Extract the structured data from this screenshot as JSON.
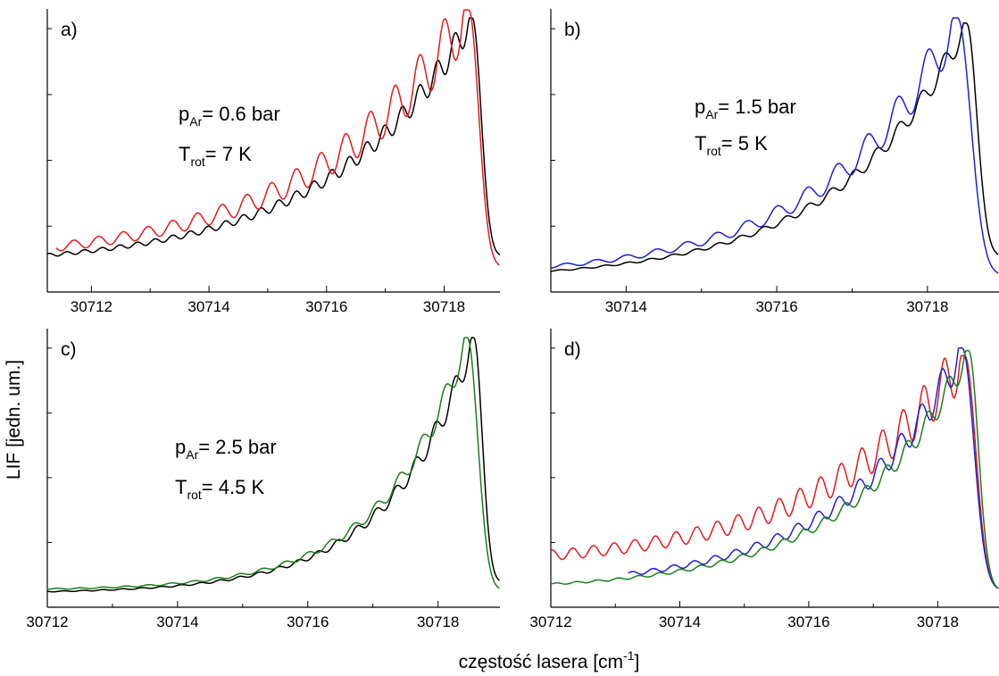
{
  "figure": {
    "ylabel": "LIF [jedn. um.]",
    "xlabel_main": "częstość lasera [cm",
    "xlabel_sup": "-1",
    "xlabel_end": "]"
  },
  "colors": {
    "red": "#e31a1c",
    "blue": "#1f1fd6",
    "green": "#1a7f1a",
    "black": "#000000"
  },
  "chart_data": [
    {
      "type": "line",
      "panel_label": "a)",
      "xlim": [
        30711.25,
        30718.95
      ],
      "ylim": [
        0,
        1
      ],
      "xticks": [
        30712,
        30714,
        30716,
        30718
      ],
      "xtick_labels": [
        "30712",
        "30714",
        "30716",
        "30718"
      ],
      "annotation": {
        "l1_main": "p",
        "l1_sub": "Ar",
        "l1_rest": "= 0.6 bar",
        "l2_main": "T",
        "l2_sub": "rot",
        "l2_rest": "= 7 K"
      },
      "series": [
        {
          "color": "black",
          "start": 30711.25,
          "peak": 30718.48,
          "end": 30718.95,
          "period": 0.3,
          "mod": 0.06,
          "base": 0.06,
          "k": 0.42,
          "amp": 1.0,
          "drop": 0.1
        },
        {
          "color": "red",
          "start": 30711.4,
          "peak": 30718.42,
          "end": 30718.95,
          "period": 0.42,
          "mod": 0.12,
          "base": 0.07,
          "k": 0.38,
          "amp": 1.03,
          "drop": 0.06,
          "jagged": true
        }
      ]
    },
    {
      "type": "line",
      "panel_label": "b)",
      "xlim": [
        30713.0,
        30718.95
      ],
      "ylim": [
        0,
        1
      ],
      "xticks": [
        30714,
        30716,
        30718
      ],
      "xtick_labels": [
        "30714",
        "30716",
        "30718"
      ],
      "annotation": {
        "l1_main": "p",
        "l1_sub": "Ar",
        "l1_rest": "= 1.5 bar",
        "l2_main": "T",
        "l2_sub": "rot",
        "l2_rest": "= 5 K"
      },
      "series": [
        {
          "color": "black",
          "start": 30713.0,
          "peak": 30718.52,
          "end": 30718.95,
          "period": 0.3,
          "mod": 0.05,
          "base": 0.01,
          "k": 0.6,
          "amp": 0.98,
          "drop": 0.1
        },
        {
          "color": "blue",
          "start": 30713.0,
          "peak": 30718.4,
          "end": 30718.95,
          "period": 0.4,
          "mod": 0.1,
          "base": 0.02,
          "k": 0.58,
          "amp": 1.0,
          "drop": 0.03,
          "jagged": true
        }
      ]
    },
    {
      "type": "line",
      "panel_label": "c)",
      "xlim": [
        30712.0,
        30718.95
      ],
      "ylim": [
        0,
        1
      ],
      "xticks": [
        30712,
        30714,
        30716,
        30718
      ],
      "xtick_labels": [
        "30712",
        "30714",
        "30716",
        "30718"
      ],
      "annotation": {
        "l1_main": "p",
        "l1_sub": "Ar",
        "l1_rest": "= 2.5 bar",
        "l2_main": "T",
        "l2_sub": "rot",
        "l2_rest": "= 4.5 K"
      },
      "series": [
        {
          "color": "black",
          "start": 30712.0,
          "peak": 30718.55,
          "end": 30718.95,
          "period": 0.3,
          "mod": 0.06,
          "base": 0.02,
          "k": 0.78,
          "amp": 1.0,
          "drop": 0.06
        },
        {
          "color": "green",
          "start": 30712.0,
          "peak": 30718.45,
          "end": 30718.95,
          "period": 0.35,
          "mod": 0.06,
          "base": 0.03,
          "k": 0.8,
          "amp": 1.0,
          "drop": 0.03
        }
      ]
    },
    {
      "type": "line",
      "panel_label": "d)",
      "xlim": [
        30712.0,
        30718.95
      ],
      "ylim": [
        0,
        1
      ],
      "xticks": [
        30712,
        30714,
        30716,
        30718
      ],
      "xtick_labels": [
        "30712",
        "30714",
        "30716",
        "30718"
      ],
      "series": [
        {
          "color": "red",
          "start": 30712.0,
          "peak": 30718.42,
          "end": 30718.95,
          "period": 0.32,
          "mod": 0.12,
          "base": 0.12,
          "k": 0.45,
          "amp": 0.93,
          "drop": 0.03,
          "jagged": true
        },
        {
          "color": "blue",
          "start": 30713.2,
          "peak": 30718.38,
          "end": 30718.95,
          "period": 0.32,
          "mod": 0.08,
          "base": 0.04,
          "k": 0.55,
          "amp": 0.96,
          "drop": 0.03,
          "jagged": true
        },
        {
          "color": "green",
          "start": 30712.0,
          "peak": 30718.48,
          "end": 30718.95,
          "period": 0.32,
          "mod": 0.06,
          "base": 0.03,
          "k": 0.56,
          "amp": 0.95,
          "drop": 0.03
        }
      ]
    }
  ]
}
